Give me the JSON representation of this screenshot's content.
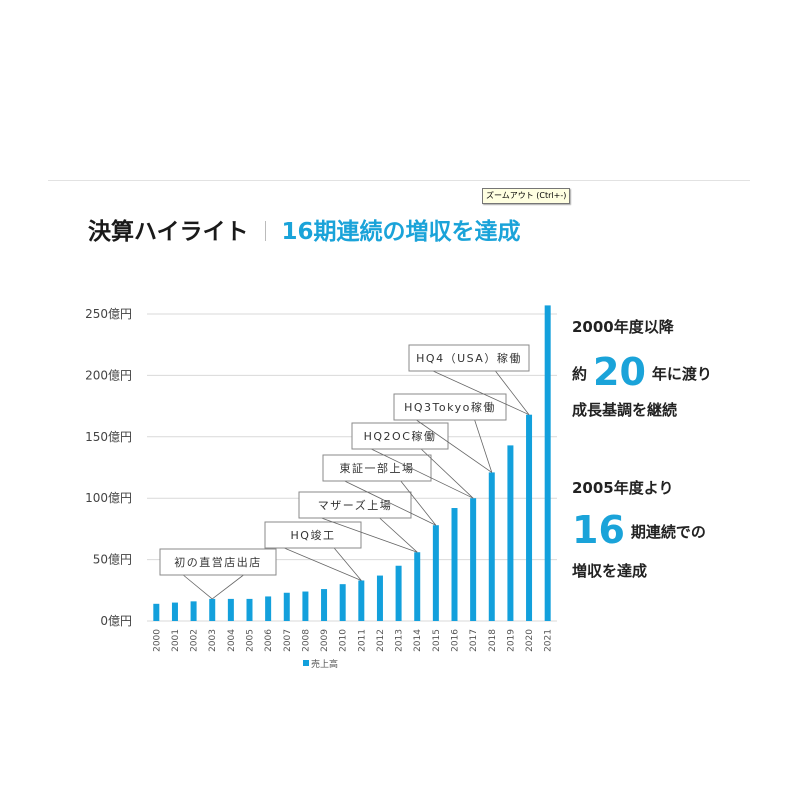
{
  "tooltip": "ズームアウト (Ctrl+-)",
  "header": {
    "title": "決算ハイライト",
    "subtitle": "16期連続の増収を達成"
  },
  "side_text": {
    "block1_line1": "2000年度以降",
    "block1_pre": "約",
    "block1_big": "20",
    "block1_post": "年に渡り",
    "block1_line3": "成長基調を継続",
    "block2_line1": "2005年度より",
    "block2_big": "16",
    "block2_post": "期連続での",
    "block2_line3": "増収を達成"
  },
  "colors": {
    "bar": "#13a0dc",
    "accent": "#1aa3d9",
    "grid": "#d9d9d9"
  },
  "chart_data": {
    "type": "bar",
    "title": "",
    "xlabel": "",
    "ylabel": "",
    "categories": [
      "2000",
      "2001",
      "2002",
      "2003",
      "2004",
      "2005",
      "2006",
      "2007",
      "2008",
      "2009",
      "2010",
      "2011",
      "2012",
      "2013",
      "2014",
      "2015",
      "2016",
      "2017",
      "2018",
      "2019",
      "2020",
      "2021"
    ],
    "series": [
      {
        "name": "売上高",
        "values": [
          14,
          15,
          16,
          18,
          18,
          18,
          20,
          23,
          24,
          26,
          30,
          33,
          37,
          45,
          56,
          78,
          92,
          100,
          121,
          143,
          168,
          257
        ]
      }
    ],
    "ylim": [
      0,
      250
    ],
    "yticks": [
      0,
      50,
      100,
      150,
      200,
      250
    ],
    "ytick_labels": [
      "0億円",
      "50億円",
      "100億円",
      "150億円",
      "200億円",
      "250億円"
    ],
    "grid": true,
    "legend": "bottom",
    "annotations": [
      {
        "text": "初の直営店出店",
        "category": "2003"
      },
      {
        "text": "HQ竣工",
        "category": "2011"
      },
      {
        "text": "マザーズ上場",
        "category": "2014"
      },
      {
        "text": "東証一部上場",
        "category": "2015"
      },
      {
        "text": "HQ2OC稼働",
        "category": "2017"
      },
      {
        "text": "HQ3Tokyo稼働",
        "category": "2018"
      },
      {
        "text": "HQ4（USA）稼働",
        "category": "2020"
      }
    ]
  }
}
